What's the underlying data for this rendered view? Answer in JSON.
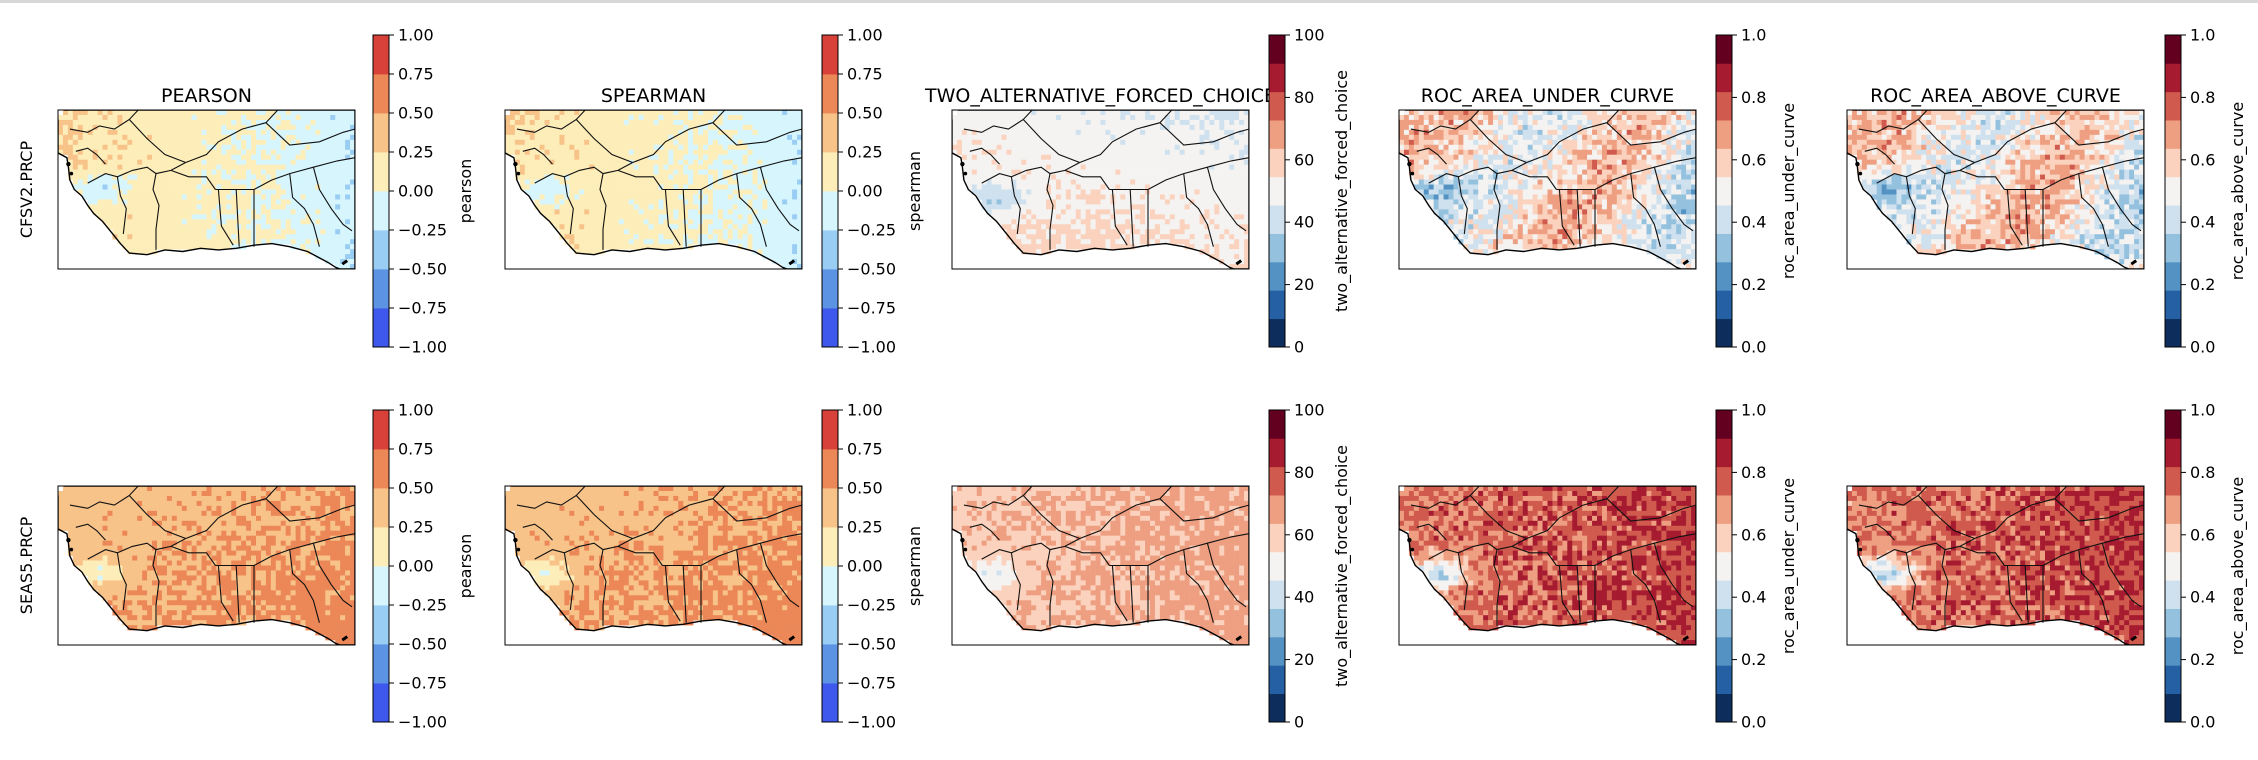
{
  "figure": {
    "rows": [
      {
        "label": "CFSV2.PRCP"
      },
      {
        "label": "SEAS5.PRCP"
      }
    ],
    "columns": [
      {
        "title": "PEARSON",
        "cbar_label": "pearson",
        "cbar_ticks": [
          "1.00",
          "0.75",
          "0.50",
          "0.25",
          "0.00",
          "−0.25",
          "−0.50",
          "−0.75",
          "−1.00"
        ],
        "palette": [
          "#3e58ee",
          "#5d93e3",
          "#99cdf3",
          "#d6f5fd",
          "#fdedb9",
          "#f7c389",
          "#ec8757",
          "#d84139"
        ],
        "colormap": "blue-white-red (coolwarm, 8 levels)"
      },
      {
        "title": "SPEARMAN",
        "cbar_label": "spearman",
        "cbar_ticks": [
          "1.00",
          "0.75",
          "0.50",
          "0.25",
          "0.00",
          "−0.25",
          "−0.50",
          "−0.75",
          "−1.00"
        ],
        "palette": [
          "#3e58ee",
          "#5d93e3",
          "#99cdf3",
          "#d6f5fd",
          "#fdedb9",
          "#f7c389",
          "#ec8757",
          "#d84139"
        ],
        "colormap": "blue-white-red (coolwarm, 8 levels)"
      },
      {
        "title": "TWO_ALTERNATIVE_FORCED_CHOICE",
        "cbar_label": "two_alternative_forced_choice",
        "cbar_ticks": [
          "100",
          "80",
          "60",
          "40",
          "20",
          "0"
        ],
        "palette": [
          "#0d2e5c",
          "#2460a3",
          "#5592c4",
          "#94c1de",
          "#cfe1ee",
          "#f4f3f1",
          "#fad2bd",
          "#ef9f81",
          "#cf5a4d",
          "#a61b30",
          "#64001f"
        ],
        "colormap": "RdBu_r (11 levels)"
      },
      {
        "title": "ROC_AREA_UNDER_CURVE",
        "cbar_label": "roc_area_under_curve",
        "cbar_ticks": [
          "1.0",
          "0.8",
          "0.6",
          "0.4",
          "0.2",
          "0.0"
        ],
        "palette": [
          "#0d2e5c",
          "#2460a3",
          "#5592c4",
          "#94c1de",
          "#cfe1ee",
          "#f4f3f1",
          "#fad2bd",
          "#ef9f81",
          "#cf5a4d",
          "#a61b30",
          "#64001f"
        ],
        "colormap": "RdBu_r (11 levels)"
      },
      {
        "title": "ROC_AREA_ABOVE_CURVE",
        "cbar_label": "roc_area_above_curve",
        "cbar_ticks": [
          "1.0",
          "0.8",
          "0.6",
          "0.4",
          "0.2",
          "0.0"
        ],
        "palette": [
          "#0d2e5c",
          "#2460a3",
          "#5592c4",
          "#94c1de",
          "#cfe1ee",
          "#f4f3f1",
          "#fad2bd",
          "#ef9f81",
          "#cf5a4d",
          "#a61b30",
          "#64001f"
        ],
        "colormap": "RdBu_r (11 levels)"
      }
    ]
  }
}
